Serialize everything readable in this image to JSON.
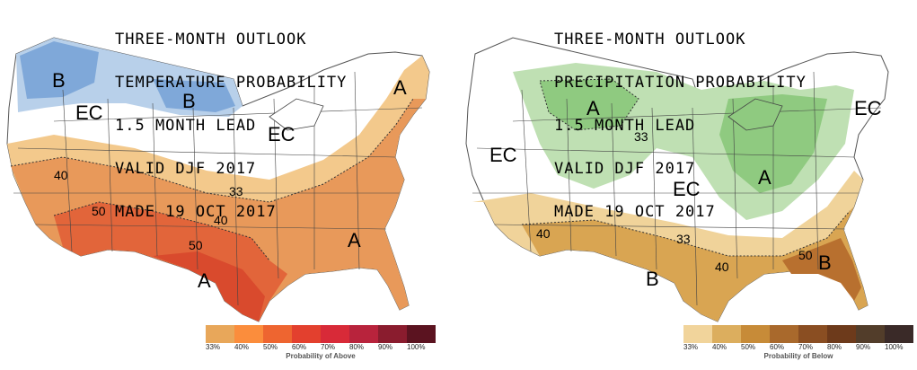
{
  "left": {
    "title_lines": [
      "THREE-MONTH OUTLOOK",
      "TEMPERATURE PROBABILITY",
      "1.5 MONTH LEAD",
      "VALID DJF 2017",
      "MADE 19 OCT 2017"
    ],
    "region_labels": [
      "B",
      "B",
      "EC",
      "EC",
      "A",
      "A",
      "A"
    ],
    "contour_labels": [
      "40",
      "50",
      "33",
      "40",
      "50"
    ],
    "legend": {
      "ticks": [
        "33%",
        "40%",
        "50%",
        "60%",
        "70%",
        "80%",
        "90%",
        "100%"
      ],
      "caption": "Probability of Above",
      "colors": [
        "#e8a75a",
        "#fb8d3c",
        "#ee6530",
        "#e3402e",
        "#d82a38",
        "#b8233c",
        "#8a1c2e",
        "#5b1320"
      ]
    },
    "colors": {
      "below_33": "#b8d0ea",
      "below_40": "#7fa8d9",
      "above_33": "#f3c98c",
      "above_40": "#e8995a",
      "above_50": "#e2653a",
      "above_60": "#d94a2d"
    }
  },
  "right": {
    "title_lines": [
      "THREE-MONTH OUTLOOK",
      "PRECIPITATION PROBABILITY",
      "1.5 MONTH LEAD",
      "VALID DJF 2017",
      "MADE 19 OCT 2017"
    ],
    "region_labels": [
      "A",
      "A",
      "EC",
      "EC",
      "EC",
      "B",
      "B"
    ],
    "contour_labels": [
      "33",
      "40",
      "33",
      "40",
      "50"
    ],
    "legend": {
      "ticks": [
        "33%",
        "40%",
        "50%",
        "60%",
        "70%",
        "80%",
        "90%",
        "100%"
      ],
      "caption": "Probability of Below",
      "colors": [
        "#f1d49b",
        "#dcae5e",
        "#c78b38",
        "#a9692c",
        "#8a4e22",
        "#6d3a1b",
        "#523d2a",
        "#3a2a28"
      ]
    },
    "colors": {
      "above_33": "#bfe0b3",
      "above_40": "#8fca80",
      "below_33": "#f0d39a",
      "below_40": "#d9a552",
      "below_50": "#b8702f"
    }
  }
}
